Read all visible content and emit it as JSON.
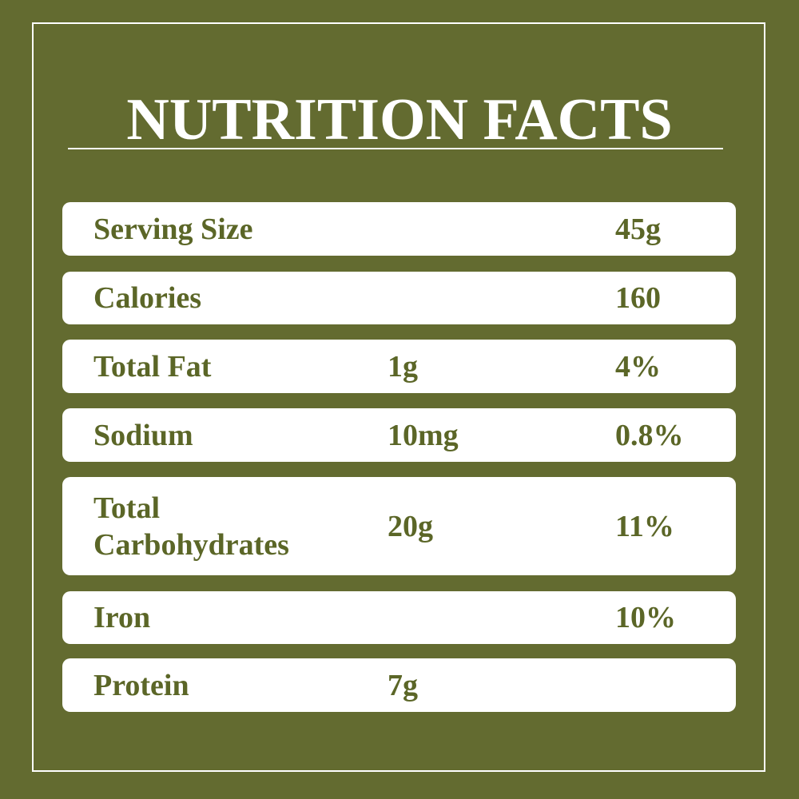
{
  "header": {
    "title": "NUTRITION FACTS"
  },
  "table": {
    "rows": [
      {
        "label": "Serving Size",
        "value": "45g"
      },
      {
        "label": "Calories",
        "value": "160"
      },
      {
        "label": "Total Fat",
        "amount": "1g",
        "value": "4%"
      },
      {
        "label": "Sodium",
        "amount": "10mg",
        "value": "0.8%"
      },
      {
        "label": "Total Carbohydrates",
        "amount": "20g",
        "value": "11%"
      },
      {
        "label": "Iron",
        "value": "10%"
      },
      {
        "label": "Protein",
        "amount": "7g"
      }
    ]
  }
}
